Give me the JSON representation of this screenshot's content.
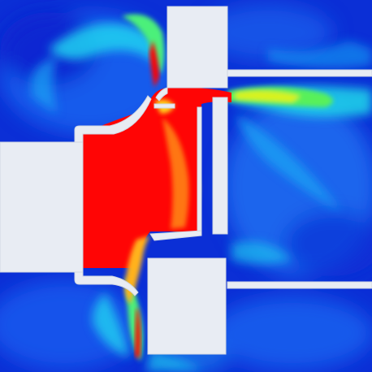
{
  "figure": {
    "kind": "cfd-contour-field",
    "colormap": [
      "#0a1fd0",
      "#1560f0",
      "#19a8f5",
      "#1fe0e6",
      "#22f0a0",
      "#7df23c",
      "#d9f21c",
      "#ffd21a",
      "#ff7a10",
      "#ff0a05"
    ],
    "colors": {
      "background_low": "#0b2fd6",
      "background_mid": "#1c6ff0",
      "cyan": "#22d8f0",
      "green": "#5ef07a",
      "yellow": "#f5e83a",
      "orange": "#ff8a18",
      "hot": "#ff0505",
      "solid": "#e8ecf3",
      "solid_edge": "#cfd6e2"
    },
    "solids": [
      "left-block",
      "upper-right-block",
      "lower-right-block",
      "right-channel-upper-plate",
      "right-channel-lower-plate",
      "inner-vertical-rod",
      "inner-vertical-rod-2"
    ]
  }
}
